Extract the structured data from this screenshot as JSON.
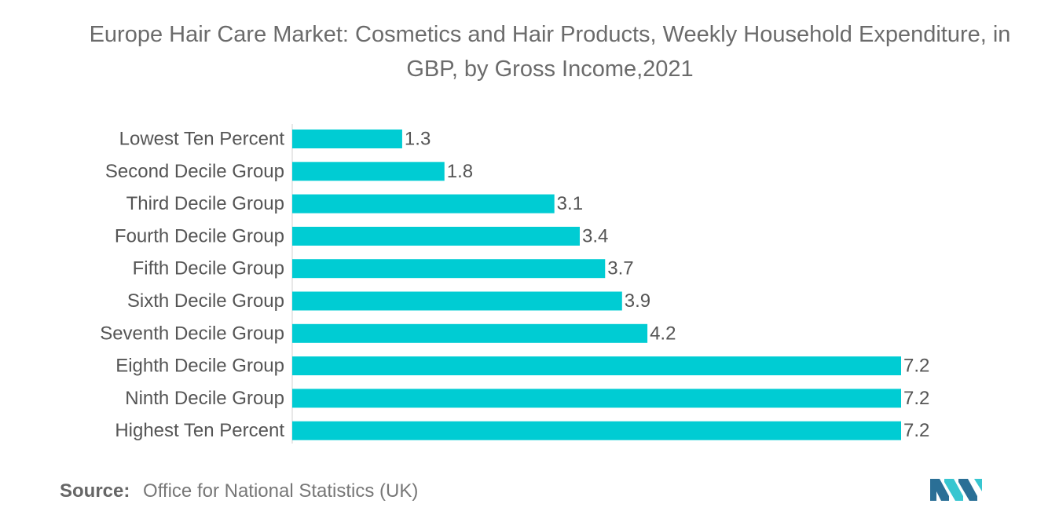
{
  "title": "Europe Hair Care Market: Cosmetics and Hair Products, Weekly Household Expenditure, in GBP, by Gross Income,2021",
  "source": {
    "label": "Source:",
    "text": "Office for National Statistics (UK)"
  },
  "logo_icon": "mordor-intelligence-logo-icon",
  "colors": {
    "bar": "#00CCD3",
    "text": "#555555",
    "axis": "#d0d0d0",
    "logo_dark": "#2a6f96",
    "logo_light": "#37c6d0"
  },
  "chart_data": {
    "type": "bar",
    "orientation": "horizontal",
    "categories": [
      "Lowest Ten Percent",
      "Second Decile Group",
      "Third Decile Group",
      "Fourth Decile Group",
      "Fifth Decile Group",
      "Sixth Decile Group",
      "Seventh Decile Group",
      "Eighth Decile Group",
      "Ninth Decile Group",
      "Highest Ten Percent"
    ],
    "values": [
      1.3,
      1.8,
      3.1,
      3.4,
      3.7,
      3.9,
      4.2,
      7.2,
      7.2,
      7.2
    ],
    "value_labels": [
      "1.3",
      "1.8",
      "3.1",
      "3.4",
      "3.7",
      "3.9",
      "4.2",
      "7.2",
      "7.2",
      "7.2"
    ],
    "title": "Europe Hair Care Market: Cosmetics and Hair Products, Weekly Household Expenditure, in GBP, by Gross Income,2021",
    "xlabel": "",
    "ylabel": "",
    "xlim": [
      0,
      7.2
    ],
    "grid": false,
    "legend": "none"
  }
}
